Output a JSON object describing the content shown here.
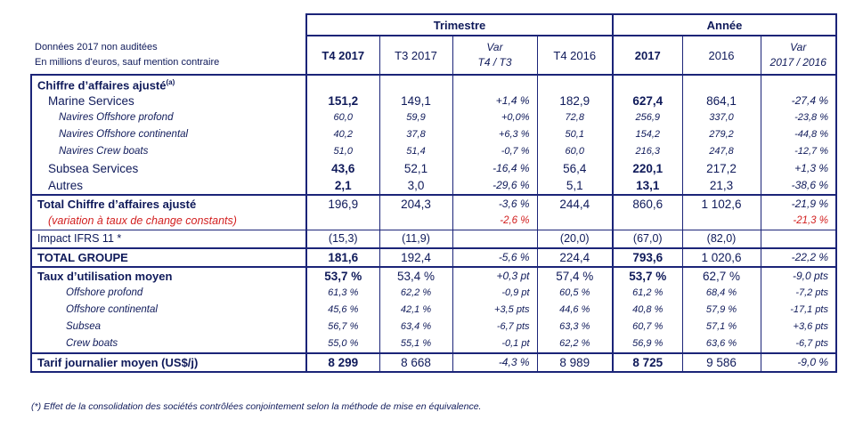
{
  "header": {
    "note_line1": "Données 2017 non auditées",
    "note_line2": "En millions d’euros, sauf mention contraire",
    "group_trimestre": "Trimestre",
    "group_annee": "Année",
    "columns": [
      {
        "line1": "T4 2017",
        "line2": "",
        "bold": true,
        "italic": false
      },
      {
        "line1": "T3 2017",
        "line2": "",
        "bold": false,
        "italic": false
      },
      {
        "line1": "Var",
        "line2": "T4 / T3",
        "bold": false,
        "italic": true
      },
      {
        "line1": "T4 2016",
        "line2": "",
        "bold": false,
        "italic": false
      },
      {
        "line1": "2017",
        "line2": "",
        "bold": true,
        "italic": false
      },
      {
        "line1": "2016",
        "line2": "",
        "bold": false,
        "italic": false
      },
      {
        "line1": "Var",
        "line2": "2017 / 2016",
        "bold": false,
        "italic": true
      }
    ]
  },
  "rows": [
    {
      "label": "Chiffre d’affaires ajusté",
      "sup": "(a)",
      "style": "section",
      "top": "thick",
      "values": [
        "",
        "",
        "",
        "",
        "",
        "",
        ""
      ]
    },
    {
      "label": "Marine Services",
      "style": "l1",
      "bold_cols": [
        0,
        4
      ],
      "values": [
        "151,2",
        "149,1",
        "+1,4 %",
        "182,9",
        "627,4",
        "864,1",
        "-27,4 %"
      ]
    },
    {
      "label": "Navires Offshore profond",
      "style": "l2",
      "values": [
        "60,0",
        "59,9",
        "+0,0%",
        "72,8",
        "256,9",
        "337,0",
        "-23,8 %"
      ]
    },
    {
      "label": "Navires Offshore continental",
      "style": "l2",
      "values": [
        "40,2",
        "37,8",
        "+6,3 %",
        "50,1",
        "154,2",
        "279,2",
        "-44,8 %"
      ]
    },
    {
      "label": "Navires Crew boats",
      "style": "l2",
      "values": [
        "51,0",
        "51,4",
        "-0,7 %",
        "60,0",
        "216,3",
        "247,8",
        "-12,7 %"
      ]
    },
    {
      "label": "Subsea Services",
      "style": "l1",
      "bold_cols": [
        0,
        4
      ],
      "values": [
        "43,6",
        "52,1",
        "-16,4 %",
        "56,4",
        "220,1",
        "217,2",
        "+1,3 %"
      ]
    },
    {
      "label": "Autres",
      "style": "l1",
      "bold_cols": [
        0,
        4
      ],
      "values": [
        "2,1",
        "3,0",
        "-29,6 %",
        "5,1",
        "13,1",
        "21,3",
        "-38,6 %"
      ]
    },
    {
      "label": "Total Chiffre d’affaires ajusté",
      "style": "total",
      "top": "thick",
      "values": [
        "196,9",
        "204,3",
        "-3,6 %",
        "244,4",
        "860,6",
        "1 102,6",
        "-21,9 %"
      ]
    },
    {
      "label": "(variation à taux de change constants)",
      "style": "redline",
      "values": [
        "",
        "",
        "-2,6 %",
        "",
        "",
        "",
        "-21,3 %"
      ]
    },
    {
      "label": "Impact IFRS 11 *",
      "style": "plain",
      "top": "thin",
      "values": [
        "(15,3)",
        "(11,9)",
        "",
        "(20,0)",
        "(67,0)",
        "(82,0)",
        ""
      ]
    },
    {
      "label": "TOTAL GROUPE",
      "style": "section",
      "top": "thick",
      "bottom": "thick",
      "bold_cols": [
        0,
        4
      ],
      "values": [
        "181,6",
        "192,4",
        "-5,6 %",
        "224,4",
        "793,6",
        "1 020,6",
        "-22,2 %"
      ]
    },
    {
      "label": "Taux d’utilisation moyen",
      "style": "util",
      "bold_cols": [
        0,
        4
      ],
      "values": [
        "53,7 %",
        "53,4 %",
        "+0,3 pt",
        "57,4 %",
        "53,7 %",
        "62,7 %",
        "-9,0 pts"
      ]
    },
    {
      "label": "Offshore profond",
      "style": "l2b",
      "values": [
        "61,3 %",
        "62,2 %",
        "-0,9 pt",
        "60,5 %",
        "61,2 %",
        "68,4 %",
        "-7,2 pts"
      ]
    },
    {
      "label": "Offshore continental",
      "style": "l2b",
      "values": [
        "45,6 %",
        "42,1 %",
        "+3,5 pts",
        "44,6 %",
        "40,8 %",
        "57,9 %",
        "-17,1 pts"
      ]
    },
    {
      "label": "Subsea",
      "style": "l2b",
      "values": [
        "56,7 %",
        "63,4 %",
        "-6,7 pts",
        "63,3 %",
        "60,7 %",
        "57,1 %",
        "+3,6 pts"
      ]
    },
    {
      "label": "Crew boats",
      "style": "l2b",
      "values": [
        "55,0 %",
        "55,1 %",
        "-0,1 pt",
        "62,2 %",
        "56,9 %",
        "63,6 %",
        "-6,7 pts"
      ]
    },
    {
      "label": "Tarif journalier moyen (US$/j)",
      "style": "section",
      "top": "thick",
      "bottom": "thick",
      "bold_cols": [
        0,
        4
      ],
      "values": [
        "8 299",
        "8 668",
        "-4,3 %",
        "8 989",
        "8 725",
        "9 586",
        "-9,0 %"
      ]
    }
  ],
  "footnote": "(*) Effet de la consolidation des sociétés contrôlées conjointement selon la méthode de mise en équivalence."
}
